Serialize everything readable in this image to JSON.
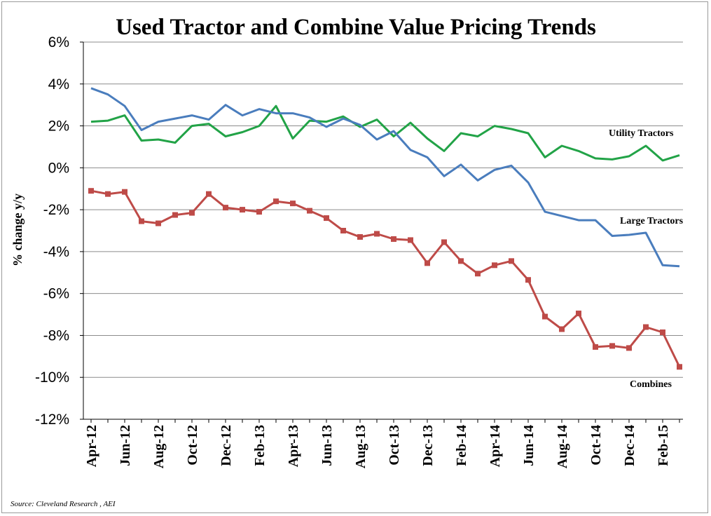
{
  "chart_data": {
    "type": "line",
    "title": "Used Tractor and Combine Value Pricing Trends",
    "ylabel": "% change y/y",
    "xlabel": "",
    "ylim": [
      -12,
      6
    ],
    "ytick_step": 2,
    "ytick_labels": [
      "6%",
      "4%",
      "2%",
      "0%",
      "-2%",
      "-4%",
      "-6%",
      "-8%",
      "-10%",
      "-12%"
    ],
    "grid": true,
    "categories": [
      "Apr-12",
      "May-12",
      "Jun-12",
      "Jul-12",
      "Aug-12",
      "Sep-12",
      "Oct-12",
      "Nov-12",
      "Dec-12",
      "Jan-13",
      "Feb-13",
      "Mar-13",
      "Apr-13",
      "May-13",
      "Jun-13",
      "Jul-13",
      "Aug-13",
      "Sep-13",
      "Oct-13",
      "Nov-13",
      "Dec-13",
      "Jan-14",
      "Feb-14",
      "Mar-14",
      "Apr-14",
      "May-14",
      "Jun-14",
      "Jul-14",
      "Aug-14",
      "Sep-14",
      "Oct-14",
      "Nov-14",
      "Dec-14",
      "Jan-15",
      "Feb-15",
      "Mar-15"
    ],
    "visible_tick_labels": [
      "Apr-12",
      "Jun-12",
      "Aug-12",
      "Oct-12",
      "Dec-12",
      "Feb-13",
      "Apr-13",
      "Jun-13",
      "Aug-13",
      "Oct-13",
      "Dec-13",
      "Feb-14",
      "Apr-14",
      "Jun-14",
      "Aug-14",
      "Oct-14",
      "Dec-14",
      "Feb-15"
    ],
    "series": [
      {
        "name": "Utility Tractors",
        "color": "#22a347",
        "marker": "none",
        "values": [
          2.2,
          2.25,
          2.5,
          1.3,
          1.35,
          1.2,
          2.0,
          2.1,
          1.5,
          1.7,
          2.0,
          2.95,
          1.4,
          2.25,
          2.2,
          2.45,
          1.95,
          2.3,
          1.5,
          2.15,
          1.4,
          0.8,
          1.65,
          1.5,
          2.0,
          1.85,
          1.65,
          0.5,
          1.05,
          0.8,
          0.45,
          0.4,
          0.55,
          1.05,
          0.35,
          0.6
        ]
      },
      {
        "name": "Large Tractors",
        "color": "#4a7dbd",
        "marker": "none",
        "values": [
          3.8,
          3.5,
          2.95,
          1.8,
          2.2,
          2.35,
          2.5,
          2.3,
          3.0,
          2.5,
          2.8,
          2.6,
          2.6,
          2.4,
          1.95,
          2.35,
          2.05,
          1.35,
          1.75,
          0.85,
          0.5,
          -0.4,
          0.15,
          -0.6,
          -0.1,
          0.1,
          -0.7,
          -2.1,
          -2.3,
          -2.5,
          -2.5,
          -3.25,
          -3.2,
          -3.1,
          -4.65,
          -4.7
        ]
      },
      {
        "name": "Combines",
        "color": "#be4b48",
        "marker": "square",
        "values": [
          -1.1,
          -1.25,
          -1.15,
          -2.55,
          -2.65,
          -2.25,
          -2.15,
          -1.25,
          -1.9,
          -2.0,
          -2.1,
          -1.6,
          -1.7,
          -2.05,
          -2.4,
          -3.0,
          -3.3,
          -3.15,
          -3.4,
          -3.45,
          -4.55,
          -3.55,
          -4.45,
          -5.05,
          -4.65,
          -4.45,
          -5.35,
          -7.1,
          -7.7,
          -6.95,
          -8.55,
          -8.5,
          -8.6,
          -7.6,
          -7.85,
          -9.5
        ]
      }
    ],
    "annotations": [
      "Utility Tractors",
      "Large Tractors",
      "Combines"
    ],
    "source": "Source: Cleveland Research , AEI"
  }
}
